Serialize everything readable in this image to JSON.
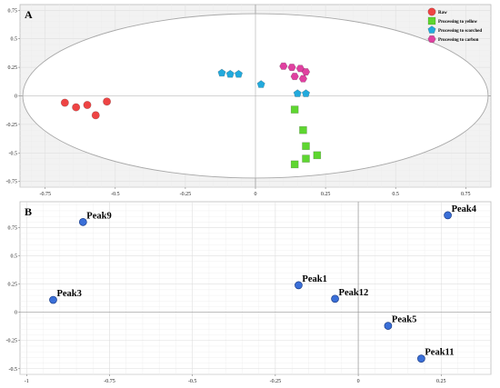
{
  "chart_data": [
    {
      "type": "scatter",
      "panel_label": "A",
      "xlim": [
        -0.84,
        0.84
      ],
      "ylim": [
        -0.8,
        0.8
      ],
      "x_ticks": [
        "-0.75",
        "-0.5",
        "-0.25",
        "0",
        "0.25",
        "0.5",
        "0.75"
      ],
      "y_ticks": [
        "0.75",
        "0.5",
        "0.25",
        "0",
        "-0.25",
        "-0.5",
        "-0.75"
      ],
      "x_tick_values": [
        -0.75,
        -0.5,
        -0.25,
        0,
        0.25,
        0.5,
        0.75
      ],
      "y_tick_values": [
        0.75,
        0.5,
        0.25,
        0,
        -0.25,
        -0.5,
        -0.75
      ],
      "grid": true,
      "background": "#f2f2f2",
      "confidence_ellipse": {
        "cx": 0,
        "cy": 0,
        "rx": 0.83,
        "ry": 0.72
      },
      "legend_position": "top-right",
      "series": [
        {
          "name": "Raw",
          "marker": "circle",
          "color": "#ee4444",
          "points": [
            [
              -0.68,
              -0.06
            ],
            [
              -0.64,
              -0.1
            ],
            [
              -0.6,
              -0.08
            ],
            [
              -0.57,
              -0.17
            ],
            [
              -0.53,
              -0.05
            ]
          ]
        },
        {
          "name": "Processing to yellow",
          "marker": "square",
          "color": "#5ed630",
          "points": [
            [
              0.14,
              -0.12
            ],
            [
              0.17,
              -0.3
            ],
            [
              0.18,
              -0.44
            ],
            [
              0.18,
              -0.55
            ],
            [
              0.14,
              -0.6
            ],
            [
              0.22,
              -0.52
            ]
          ]
        },
        {
          "name": "Processing to scorched",
          "marker": "pentagon",
          "color": "#22aadd",
          "points": [
            [
              -0.12,
              0.2
            ],
            [
              -0.09,
              0.19
            ],
            [
              -0.06,
              0.19
            ],
            [
              0.02,
              0.1
            ],
            [
              0.15,
              0.02
            ],
            [
              0.18,
              0.02
            ]
          ]
        },
        {
          "name": "Processing to carbon",
          "marker": "hexagon",
          "color": "#e040a0",
          "points": [
            [
              0.1,
              0.26
            ],
            [
              0.13,
              0.25
            ],
            [
              0.16,
              0.24
            ],
            [
              0.18,
              0.21
            ],
            [
              0.14,
              0.17
            ],
            [
              0.17,
              0.15
            ]
          ]
        }
      ]
    },
    {
      "type": "scatter",
      "panel_label": "B",
      "xlim": [
        -1.02,
        0.4
      ],
      "ylim": [
        -0.55,
        0.98
      ],
      "x_ticks": [
        "-1",
        "-0.75",
        "-0.5",
        "-0.25",
        "0",
        "0.25"
      ],
      "y_ticks": [
        "0.75",
        "0.5",
        "0.25",
        "0",
        "-0.25",
        "-0.5"
      ],
      "x_tick_values": [
        -1,
        -0.75,
        -0.5,
        -0.25,
        0,
        0.25
      ],
      "y_tick_values": [
        0.75,
        0.5,
        0.25,
        0,
        -0.25,
        -0.5
      ],
      "grid": true,
      "background": "#ffffff",
      "marker_color": "#3a6fd8",
      "points": [
        {
          "label": "Peak9",
          "x": -0.83,
          "y": 0.8
        },
        {
          "label": "Peak4",
          "x": 0.27,
          "y": 0.86
        },
        {
          "label": "Peak3",
          "x": -0.92,
          "y": 0.11
        },
        {
          "label": "Peak1",
          "x": -0.18,
          "y": 0.24
        },
        {
          "label": "Peak12",
          "x": -0.07,
          "y": 0.12
        },
        {
          "label": "Peak5",
          "x": 0.09,
          "y": -0.12
        },
        {
          "label": "Peak11",
          "x": 0.19,
          "y": -0.41
        }
      ]
    }
  ]
}
